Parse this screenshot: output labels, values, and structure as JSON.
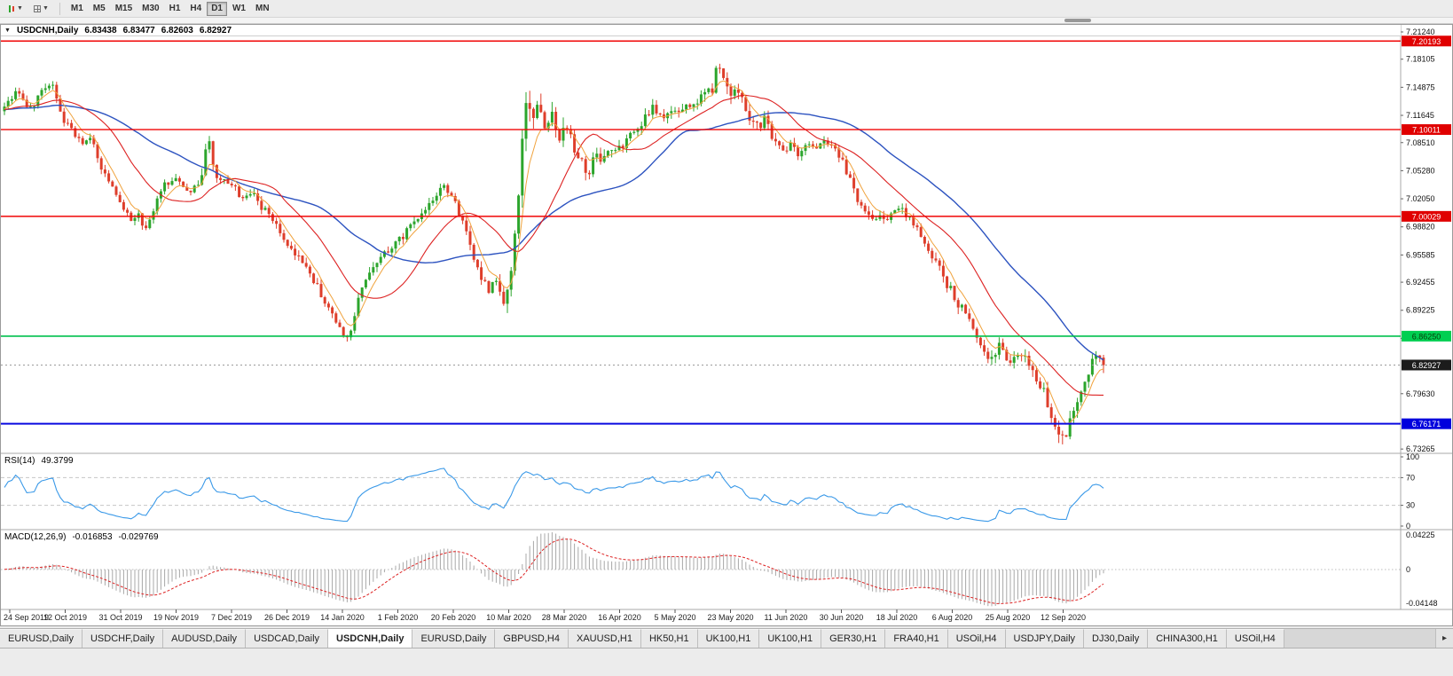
{
  "toolbar": {
    "timeframes": [
      {
        "label": "M1",
        "active": false
      },
      {
        "label": "M5",
        "active": false
      },
      {
        "label": "M15",
        "active": false
      },
      {
        "label": "M30",
        "active": false
      },
      {
        "label": "H1",
        "active": false
      },
      {
        "label": "H4",
        "active": false
      },
      {
        "label": "D1",
        "active": true
      },
      {
        "label": "W1",
        "active": false
      },
      {
        "label": "MN",
        "active": false
      }
    ]
  },
  "chart": {
    "title": {
      "symbol": "USDCNH,Daily",
      "open": "6.83438",
      "high": "6.83477",
      "low": "6.82603",
      "close": "6.82927"
    },
    "price_axis": {
      "ticks": [
        "7.21240",
        "7.18105",
        "7.14875",
        "7.11645",
        "7.08510",
        "7.05280",
        "7.02050",
        "6.98820",
        "6.95585",
        "6.92455",
        "6.89225",
        "6.85995",
        "6.79630",
        "6.73265"
      ]
    },
    "levels": [
      {
        "name": "resistance-upper",
        "value": "7.20193",
        "price": 7.20193,
        "line_color": "#f00505",
        "badge_bg": "#e00000",
        "badge_fg": "#ffffff",
        "line_style": "solid",
        "width": 1.4
      },
      {
        "name": "resistance-mid",
        "value": "7.10011",
        "price": 7.10011,
        "line_color": "#f00505",
        "badge_bg": "#e00000",
        "badge_fg": "#ffffff",
        "line_style": "solid",
        "width": 1.4
      },
      {
        "name": "support-seven",
        "value": "7.00029",
        "price": 7.00029,
        "line_color": "#f00505",
        "badge_bg": "#e00000",
        "badge_fg": "#ffffff",
        "line_style": "solid",
        "width": 1.4
      },
      {
        "name": "support-green",
        "value": "6.86250",
        "price": 6.8625,
        "line_color": "#00c14e",
        "badge_bg": "#00cf52",
        "badge_fg": "#063b06",
        "line_style": "solid",
        "width": 1.6
      },
      {
        "name": "support-blue",
        "value": "6.76171",
        "price": 6.76171,
        "line_color": "#0a0ae0",
        "badge_bg": "#0000dd",
        "badge_fg": "#ffffff",
        "line_style": "solid",
        "width": 2
      },
      {
        "name": "current-price",
        "value": "6.82927",
        "price": 6.82927,
        "line_color": "#9a9a9a",
        "badge_bg": "#1c1c1c",
        "badge_fg": "#ffffff",
        "line_style": "dotted",
        "width": 1
      }
    ],
    "dates": [
      "24 Sep 2019",
      "12 Oct 2019",
      "31 Oct 2019",
      "19 Nov 2019",
      "7 Dec 2019",
      "26 Dec 2019",
      "14 Jan 2020",
      "1 Feb 2020",
      "20 Feb 2020",
      "10 Mar 2020",
      "28 Mar 2020",
      "16 Apr 2020",
      "5 May 2020",
      "23 May 2020",
      "11 Jun 2020",
      "30 Jun 2020",
      "18 Jul 2020",
      "6 Aug 2020",
      "25 Aug 2020",
      "12 Sep 2020"
    ]
  },
  "rsi": {
    "label": "RSI(14)",
    "value": "49.3799",
    "axis_labels": [
      "100",
      "70",
      "30",
      "0"
    ],
    "levels": [
      70,
      30
    ]
  },
  "macd": {
    "label": "MACD(12,26,9)",
    "value_main": "-0.016853",
    "value_signal": "-0.029769",
    "axis_top": "0.04225",
    "axis_zero": "0",
    "axis_bottom": "-0.04148"
  },
  "tabs": [
    {
      "label": "EURUSD,Daily",
      "active": false
    },
    {
      "label": "USDCHF,Daily",
      "active": false
    },
    {
      "label": "AUDUSD,Daily",
      "active": false
    },
    {
      "label": "USDCAD,Daily",
      "active": false
    },
    {
      "label": "USDCNH,Daily",
      "active": true
    },
    {
      "label": "EURUSD,Daily",
      "active": false
    },
    {
      "label": "GBPUSD,H4",
      "active": false
    },
    {
      "label": "XAUUSD,H1",
      "active": false
    },
    {
      "label": "HK50,H1",
      "active": false
    },
    {
      "label": "UK100,H1",
      "active": false
    },
    {
      "label": "UK100,H1",
      "active": false
    },
    {
      "label": "GER30,H1",
      "active": false
    },
    {
      "label": "FRA40,H1",
      "active": false
    },
    {
      "label": "USOil,H4",
      "active": false
    },
    {
      "label": "USDJPY,Daily",
      "active": false
    },
    {
      "label": "DJ30,Daily",
      "active": false
    },
    {
      "label": "CHINA300,H1",
      "active": false
    },
    {
      "label": "USOil,H4",
      "active": false
    }
  ],
  "colors": {
    "candle_up": "#2ca52c",
    "candle_down": "#de3e2b",
    "ma_fast": "#f0a23c",
    "ma_mid": "#dd2222",
    "ma_slow": "#2d53c0",
    "rsi_line": "#3a99e8",
    "rsi_level": "#c6c6c6",
    "macd_hist": "#a8a8a8",
    "macd_signal": "#dd2222",
    "axis_text": "#111111",
    "separator": "#a8a8a8"
  },
  "chart_data": {
    "type": "candlestick",
    "symbol": "USDCNH",
    "timeframe": "Daily",
    "current_price": 6.82927,
    "ohlc_current": {
      "open": 6.83438,
      "high": 6.83477,
      "low": 6.82603,
      "close": 6.82927
    },
    "y_axis": {
      "min": 6.717,
      "max": 7.223
    },
    "horizontal_lines": [
      7.20193,
      7.10011,
      7.00029,
      6.8625,
      6.76171
    ],
    "indicators": [
      {
        "name": "RSI",
        "period": 14,
        "last": 49.3799,
        "levels": [
          70,
          30
        ]
      },
      {
        "name": "MACD",
        "fast": 12,
        "slow": 26,
        "signal": 9,
        "last_main": -0.016853,
        "last_signal": -0.029769
      }
    ],
    "render_hints": {
      "candle_spacing_px": 4.2,
      "ma_periods": {
        "fast": 6,
        "mid": 20,
        "slow": 45
      }
    },
    "price_path": [
      [
        -260,
        7.12
      ],
      [
        5,
        7.125
      ],
      [
        18,
        7.145
      ],
      [
        32,
        7.12
      ],
      [
        48,
        7.15
      ],
      [
        58,
        7.155
      ],
      [
        68,
        7.115
      ],
      [
        80,
        7.1
      ],
      [
        92,
        7.085
      ],
      [
        102,
        7.095
      ],
      [
        112,
        7.06
      ],
      [
        124,
        7.04
      ],
      [
        136,
        7.015
      ],
      [
        146,
        6.995
      ],
      [
        154,
        7.005
      ],
      [
        162,
        6.985
      ],
      [
        172,
        7.01
      ],
      [
        184,
        7.035
      ],
      [
        194,
        7.045
      ],
      [
        206,
        7.035
      ],
      [
        218,
        7.03
      ],
      [
        228,
        7.045
      ],
      [
        233,
        7.095
      ],
      [
        240,
        7.05
      ],
      [
        250,
        7.04
      ],
      [
        262,
        7.035
      ],
      [
        272,
        7.02
      ],
      [
        282,
        7.03
      ],
      [
        292,
        7.012
      ],
      [
        304,
        7.0
      ],
      [
        316,
        6.98
      ],
      [
        328,
        6.962
      ],
      [
        340,
        6.945
      ],
      [
        352,
        6.928
      ],
      [
        364,
        6.905
      ],
      [
        376,
        6.882
      ],
      [
        388,
        6.862
      ],
      [
        396,
        6.872
      ],
      [
        406,
        6.915
      ],
      [
        418,
        6.937
      ],
      [
        430,
        6.952
      ],
      [
        442,
        6.968
      ],
      [
        454,
        6.978
      ],
      [
        466,
        6.995
      ],
      [
        478,
        7.008
      ],
      [
        490,
        7.025
      ],
      [
        500,
        7.032
      ],
      [
        510,
        7.018
      ],
      [
        520,
        6.998
      ],
      [
        530,
        6.962
      ],
      [
        540,
        6.932
      ],
      [
        550,
        6.912
      ],
      [
        558,
        6.928
      ],
      [
        566,
        6.902
      ],
      [
        574,
        6.935
      ],
      [
        580,
        6.975
      ],
      [
        586,
        7.07
      ],
      [
        592,
        7.135
      ],
      [
        598,
        7.112
      ],
      [
        604,
        7.14
      ],
      [
        612,
        7.1
      ],
      [
        620,
        7.122
      ],
      [
        628,
        7.092
      ],
      [
        636,
        7.11
      ],
      [
        646,
        7.082
      ],
      [
        654,
        7.062
      ],
      [
        662,
        7.052
      ],
      [
        670,
        7.072
      ],
      [
        678,
        7.06
      ],
      [
        686,
        7.078
      ],
      [
        696,
        7.075
      ],
      [
        706,
        7.092
      ],
      [
        716,
        7.095
      ],
      [
        726,
        7.112
      ],
      [
        736,
        7.125
      ],
      [
        744,
        7.112
      ],
      [
        754,
        7.122
      ],
      [
        764,
        7.118
      ],
      [
        774,
        7.13
      ],
      [
        784,
        7.132
      ],
      [
        794,
        7.138
      ],
      [
        802,
        7.148
      ],
      [
        808,
        7.173
      ],
      [
        814,
        7.158
      ],
      [
        822,
        7.142
      ],
      [
        830,
        7.15
      ],
      [
        838,
        7.128
      ],
      [
        846,
        7.112
      ],
      [
        854,
        7.102
      ],
      [
        862,
        7.112
      ],
      [
        870,
        7.09
      ],
      [
        880,
        7.078
      ],
      [
        890,
        7.082
      ],
      [
        900,
        7.072
      ],
      [
        910,
        7.086
      ],
      [
        920,
        7.08
      ],
      [
        930,
        7.09
      ],
      [
        940,
        7.076
      ],
      [
        950,
        7.06
      ],
      [
        958,
        7.042
      ],
      [
        966,
        7.02
      ],
      [
        974,
        7.002
      ],
      [
        982,
        6.996
      ],
      [
        990,
        7.006
      ],
      [
        998,
        6.992
      ],
      [
        1006,
        7.002
      ],
      [
        1014,
        7.008
      ],
      [
        1022,
        7.0
      ],
      [
        1030,
        6.99
      ],
      [
        1040,
        6.972
      ],
      [
        1050,
        6.953
      ],
      [
        1060,
        6.935
      ],
      [
        1070,
        6.917
      ],
      [
        1080,
        6.9
      ],
      [
        1090,
        6.885
      ],
      [
        1100,
        6.862
      ],
      [
        1108,
        6.843
      ],
      [
        1116,
        6.836
      ],
      [
        1124,
        6.852
      ],
      [
        1132,
        6.84
      ],
      [
        1140,
        6.832
      ],
      [
        1148,
        6.842
      ],
      [
        1156,
        6.834
      ],
      [
        1164,
        6.822
      ],
      [
        1172,
        6.806
      ],
      [
        1180,
        6.788
      ],
      [
        1188,
        6.758
      ],
      [
        1196,
        6.744
      ],
      [
        1204,
        6.76
      ],
      [
        1212,
        6.782
      ],
      [
        1220,
        6.804
      ],
      [
        1228,
        6.828
      ],
      [
        1236,
        6.842
      ],
      [
        1243,
        6.828
      ]
    ],
    "volatility_path": [
      [
        -260,
        0.9
      ],
      [
        200,
        0.9
      ],
      [
        230,
        1.5
      ],
      [
        245,
        0.9
      ],
      [
        380,
        1.1
      ],
      [
        520,
        1.0
      ],
      [
        560,
        1.4
      ],
      [
        582,
        2.3
      ],
      [
        600,
        2.6
      ],
      [
        640,
        1.9
      ],
      [
        680,
        1.3
      ],
      [
        760,
        1.1
      ],
      [
        800,
        1.5
      ],
      [
        812,
        1.9
      ],
      [
        830,
        1.4
      ],
      [
        900,
        1.0
      ],
      [
        1040,
        1.1
      ],
      [
        1090,
        1.4
      ],
      [
        1140,
        1.2
      ],
      [
        1180,
        1.7
      ],
      [
        1200,
        1.9
      ],
      [
        1215,
        1.5
      ],
      [
        1243,
        1.2
      ]
    ]
  }
}
